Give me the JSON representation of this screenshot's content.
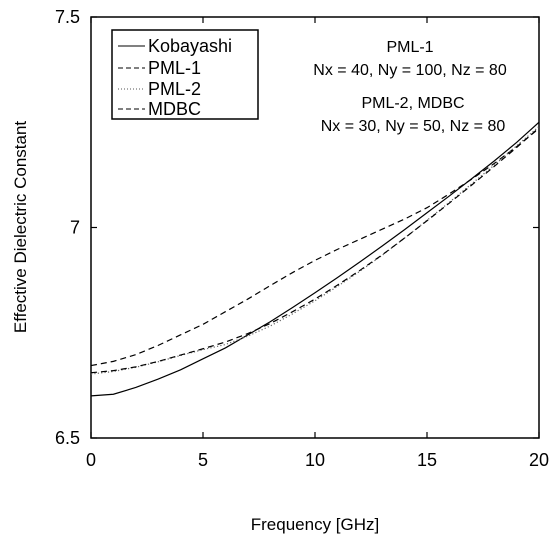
{
  "chart_data": {
    "type": "line",
    "xlabel": "Frequency [GHz]",
    "ylabel": "Effective Dielectric Constant",
    "xlim": [
      0,
      20
    ],
    "ylim": [
      6.5,
      7.5
    ],
    "x_ticks": [
      0,
      5,
      10,
      15,
      20
    ],
    "x_tick_labels": [
      "0",
      "5",
      "10",
      "15",
      "20"
    ],
    "y_ticks": [
      6.5,
      7.0,
      7.5
    ],
    "y_tick_labels": [
      "6.5",
      "7",
      "7.5"
    ],
    "grid": false,
    "legend_position": "top-left",
    "series": [
      {
        "name": "Kobayashi",
        "style": "solid",
        "x": [
          0,
          1,
          2,
          3,
          4,
          5,
          6,
          7,
          8,
          9,
          10,
          11,
          12,
          13,
          14,
          15,
          16,
          17,
          18,
          19,
          20
        ],
        "y": [
          6.6,
          6.604,
          6.62,
          6.64,
          6.662,
          6.688,
          6.714,
          6.745,
          6.776,
          6.81,
          6.845,
          6.881,
          6.918,
          6.956,
          6.995,
          7.035,
          7.075,
          7.116,
          7.158,
          7.202,
          7.25
        ]
      },
      {
        "name": "PML-1",
        "style": "dashed",
        "x": [
          0,
          1,
          2,
          3,
          4,
          5,
          6,
          7,
          8,
          9,
          10,
          11,
          12,
          13,
          14,
          15,
          16,
          17,
          18,
          19,
          20
        ],
        "y": [
          6.672,
          6.682,
          6.698,
          6.72,
          6.745,
          6.77,
          6.8,
          6.83,
          6.862,
          6.893,
          6.922,
          6.948,
          6.972,
          6.996,
          7.02,
          7.047,
          7.08,
          7.115,
          7.152,
          7.192,
          7.235
        ]
      },
      {
        "name": "PML-2",
        "style": "dotted",
        "x": [
          0,
          1,
          2,
          3,
          4,
          5,
          6,
          7,
          8,
          9,
          10,
          11,
          12,
          13,
          14,
          15,
          16,
          17,
          18,
          19,
          20
        ],
        "y": [
          6.652,
          6.658,
          6.668,
          6.681,
          6.696,
          6.71,
          6.722,
          6.742,
          6.766,
          6.795,
          6.826,
          6.86,
          6.896,
          6.934,
          6.975,
          7.017,
          7.06,
          7.104,
          7.148,
          7.194,
          7.24
        ]
      },
      {
        "name": "MDBC",
        "style": "dashed",
        "x": [
          0,
          1,
          2,
          3,
          4,
          5,
          6,
          7,
          8,
          9,
          10,
          11,
          12,
          13,
          14,
          15,
          16,
          17,
          18,
          19,
          20
        ],
        "y": [
          6.655,
          6.66,
          6.669,
          6.682,
          6.697,
          6.712,
          6.728,
          6.748,
          6.772,
          6.8,
          6.83,
          6.863,
          6.898,
          6.935,
          6.975,
          7.016,
          7.058,
          7.101,
          7.145,
          7.19,
          7.237
        ]
      }
    ],
    "annotations": [
      {
        "text": "PML-1"
      },
      {
        "text": "Nx = 40, Ny = 100, Nz = 80"
      },
      {
        "text": "PML-2, MDBC"
      },
      {
        "text": "Nx = 30, Ny = 50, Nz = 80"
      }
    ]
  }
}
